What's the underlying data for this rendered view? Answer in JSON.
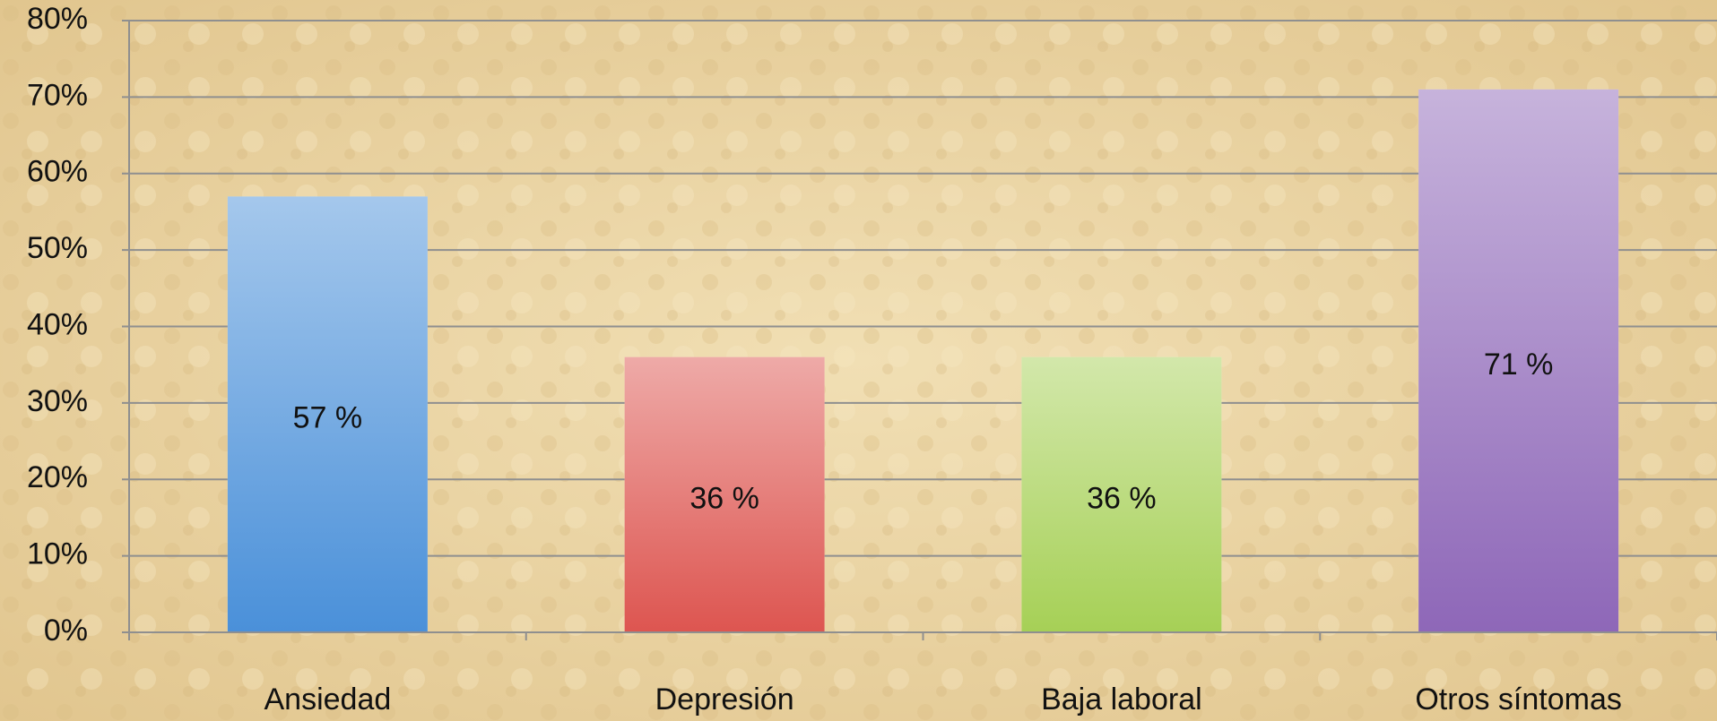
{
  "chart_data": {
    "type": "bar",
    "categories": [
      "Ansiedad",
      "Depresión",
      "Baja laboral",
      "Otros síntomas"
    ],
    "values": [
      57,
      36,
      36,
      71
    ],
    "value_labels": [
      "57 %",
      "36 %",
      "36 %",
      "71 %"
    ],
    "colors": [
      "#4a90d9",
      "#dd5550",
      "#a6d056",
      "#8e67b8"
    ],
    "ylim": [
      0,
      80
    ],
    "yticks": [
      {
        "value": 0,
        "label": "0%"
      },
      {
        "value": 10,
        "label": "10%"
      },
      {
        "value": 20,
        "label": "20%"
      },
      {
        "value": 30,
        "label": "30%"
      },
      {
        "value": 40,
        "label": "40%"
      },
      {
        "value": 50,
        "label": "50%"
      },
      {
        "value": 60,
        "label": "60%"
      },
      {
        "value": 70,
        "label": "70%"
      },
      {
        "value": 80,
        "label": "80%"
      }
    ],
    "grid": true
  }
}
